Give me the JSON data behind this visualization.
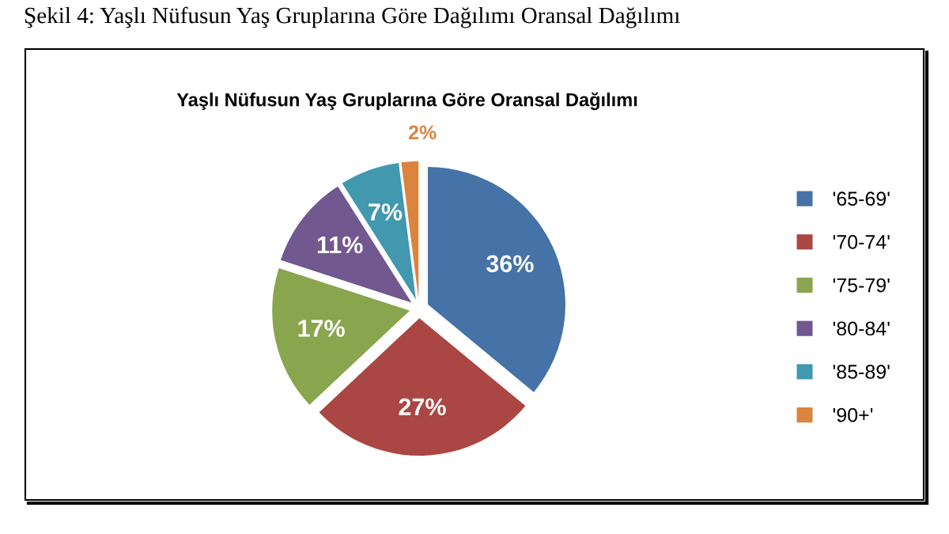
{
  "chart_data": {
    "type": "pie",
    "title": "Yaşlı Nüfusun Yaş Gruplarına Göre Oransal Dağılımı",
    "annotations": [
      "Şekil 4: Yaşlı Nüfusun Yaş Gruplarına Göre Dağılımı Oransal Dağılımı"
    ],
    "categories": [
      "'65-69'",
      "'70-74'",
      "'75-79'",
      "'80-84'",
      "'85-89'",
      "'90+'"
    ],
    "values": [
      36,
      27,
      17,
      11,
      7,
      2
    ],
    "value_labels": [
      "36%",
      "27%",
      "17%",
      "11%",
      "7%",
      "2%"
    ],
    "colors": [
      "#4572a7",
      "#aa4643",
      "#89a54e",
      "#71588f",
      "#4198af",
      "#db843d"
    ],
    "legend": "right"
  }
}
